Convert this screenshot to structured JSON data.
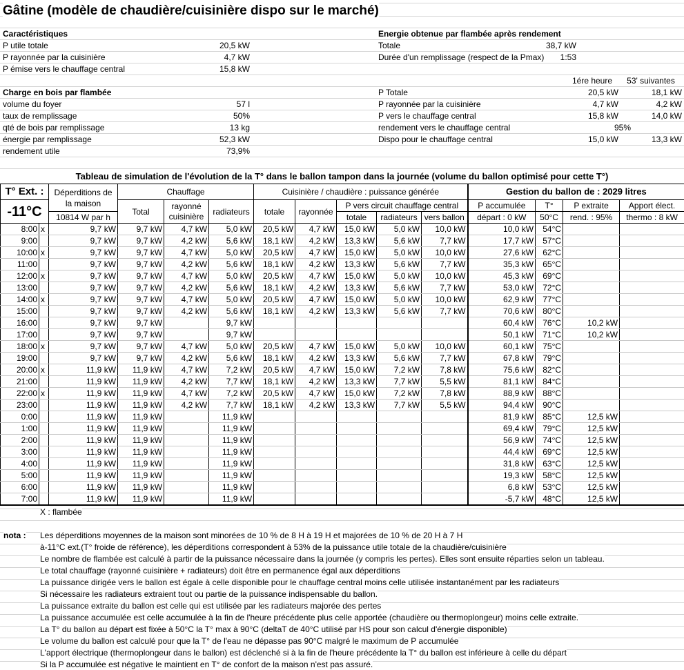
{
  "title": "Gâtine (modèle de chaudière/cuisinière dispo sur le marché)",
  "caracteristiques": {
    "heading": "Caractéristiques",
    "rows": [
      {
        "label": "P utile totale",
        "value": "20,5 kW"
      },
      {
        "label": "P rayonnée par la cuisinière",
        "value": "4,7 kW"
      },
      {
        "label": "P émise vers le chauffage central",
        "value": "15,8 kW"
      }
    ]
  },
  "charge": {
    "heading": "Charge en bois par flambée",
    "rows": [
      {
        "label": "volume du foyer",
        "value": "57 l"
      },
      {
        "label": "taux de remplissage",
        "value": "50%"
      },
      {
        "label": "qté de bois par remplissage",
        "value": "13 kg"
      },
      {
        "label": "énergie par remplissage",
        "value": "52,3 kW"
      },
      {
        "label": "rendement utile",
        "value": "73,9%"
      }
    ]
  },
  "energie": {
    "heading": "Energie obtenue par flambée après rendement",
    "totale_label": "Totale",
    "totale_value": "38,7 kW",
    "duree_label": "Durée d'un remplissage (respect de la Pmax)",
    "duree_value": "1:53",
    "col1": "1ére heure",
    "col2": "53' suivantes",
    "rows": [
      {
        "label": "P Totale",
        "v1": "20,5 kW",
        "v2": "18,1 kW"
      },
      {
        "label": "P rayonnée par la cuisinière",
        "v1": "4,7 kW",
        "v2": "4,2 kW"
      },
      {
        "label": "P vers le chauffage central",
        "v1": "15,8 kW",
        "v2": "14,0 kW"
      },
      {
        "label": "rendement vers le chauffage central",
        "v1": "95%",
        "v2": ""
      },
      {
        "label": "Dispo pour le chauffage central",
        "v1": "15,0 kW",
        "v2": "13,3 kW"
      }
    ]
  },
  "table": {
    "title": "Tableau de simulation de l'évolution de la T° dans le ballon tampon dans la journée (volume du ballon optimisé pour cette T°)",
    "h_text": "T° Ext. :",
    "h_temp": "-11°C",
    "h_dep": "Déperditions de la maison",
    "h_dep_val": "10814 W par h",
    "h_chauffage": "Chauffage",
    "h_total": "Total",
    "h_rayonne": "rayonné cuisinière",
    "h_radiateurs": "radiateurs",
    "h_cuisiniere": "Cuisinière / chaudière : puissance générée",
    "h_totale": "totale",
    "h_rayonnee": "rayonnée",
    "h_pvers": "P vers circuit chauffage central",
    "h_pv_totale": "totale",
    "h_pv_rad": "radiateurs",
    "h_pv_ballon": "vers ballon",
    "h_gestion": "Gestion du ballon de : 2029 litres",
    "h_pacc": "P accumulée",
    "h_t": "T°",
    "h_pext": "P extraite",
    "h_apport": "Apport élect.",
    "h_depart": "départ : 0 kW",
    "h_t0": "50°C",
    "h_rend": "rend. : 95%",
    "h_thermo": "thermo : 8 kW",
    "rows": [
      [
        "8:00",
        "x",
        "9,7 kW",
        "9,7 kW",
        "4,7 kW",
        "5,0 kW",
        "20,5 kW",
        "4,7 kW",
        "15,0 kW",
        "5,0 kW",
        "10,0 kW",
        "10,0 kW",
        "54°C",
        "",
        ""
      ],
      [
        "9:00",
        "",
        "9,7 kW",
        "9,7 kW",
        "4,2 kW",
        "5,6 kW",
        "18,1 kW",
        "4,2 kW",
        "13,3 kW",
        "5,6 kW",
        "7,7 kW",
        "17,7 kW",
        "57°C",
        "",
        ""
      ],
      [
        "10:00",
        "x",
        "9,7 kW",
        "9,7 kW",
        "4,7 kW",
        "5,0 kW",
        "20,5 kW",
        "4,7 kW",
        "15,0 kW",
        "5,0 kW",
        "10,0 kW",
        "27,6 kW",
        "62°C",
        "",
        ""
      ],
      [
        "11:00",
        "",
        "9,7 kW",
        "9,7 kW",
        "4,2 kW",
        "5,6 kW",
        "18,1 kW",
        "4,2 kW",
        "13,3 kW",
        "5,6 kW",
        "7,7 kW",
        "35,3 kW",
        "65°C",
        "",
        ""
      ],
      [
        "12:00",
        "x",
        "9,7 kW",
        "9,7 kW",
        "4,7 kW",
        "5,0 kW",
        "20,5 kW",
        "4,7 kW",
        "15,0 kW",
        "5,0 kW",
        "10,0 kW",
        "45,3 kW",
        "69°C",
        "",
        ""
      ],
      [
        "13:00",
        "",
        "9,7 kW",
        "9,7 kW",
        "4,2 kW",
        "5,6 kW",
        "18,1 kW",
        "4,2 kW",
        "13,3 kW",
        "5,6 kW",
        "7,7 kW",
        "53,0 kW",
        "72°C",
        "",
        ""
      ],
      [
        "14:00",
        "x",
        "9,7 kW",
        "9,7 kW",
        "4,7 kW",
        "5,0 kW",
        "20,5 kW",
        "4,7 kW",
        "15,0 kW",
        "5,0 kW",
        "10,0 kW",
        "62,9 kW",
        "77°C",
        "",
        ""
      ],
      [
        "15:00",
        "",
        "9,7 kW",
        "9,7 kW",
        "4,2 kW",
        "5,6 kW",
        "18,1 kW",
        "4,2 kW",
        "13,3 kW",
        "5,6 kW",
        "7,7 kW",
        "70,6 kW",
        "80°C",
        "",
        ""
      ],
      [
        "16:00",
        "",
        "9,7 kW",
        "9,7 kW",
        "",
        "9,7 kW",
        "",
        "",
        "",
        "",
        "",
        "60,4 kW",
        "76°C",
        "10,2 kW",
        ""
      ],
      [
        "17:00",
        "",
        "9,7 kW",
        "9,7 kW",
        "",
        "9,7 kW",
        "",
        "",
        "",
        "",
        "",
        "50,1 kW",
        "71°C",
        "10,2 kW",
        ""
      ],
      [
        "18:00",
        "x",
        "9,7 kW",
        "9,7 kW",
        "4,7 kW",
        "5,0 kW",
        "20,5 kW",
        "4,7 kW",
        "15,0 kW",
        "5,0 kW",
        "10,0 kW",
        "60,1 kW",
        "75°C",
        "",
        ""
      ],
      [
        "19:00",
        "",
        "9,7 kW",
        "9,7 kW",
        "4,2 kW",
        "5,6 kW",
        "18,1 kW",
        "4,2 kW",
        "13,3 kW",
        "5,6 kW",
        "7,7 kW",
        "67,8 kW",
        "79°C",
        "",
        ""
      ],
      [
        "20:00",
        "x",
        "11,9 kW",
        "11,9 kW",
        "4,7 kW",
        "7,2 kW",
        "20,5 kW",
        "4,7 kW",
        "15,0 kW",
        "7,2 kW",
        "7,8 kW",
        "75,6 kW",
        "82°C",
        "",
        ""
      ],
      [
        "21:00",
        "",
        "11,9 kW",
        "11,9 kW",
        "4,2 kW",
        "7,7 kW",
        "18,1 kW",
        "4,2 kW",
        "13,3 kW",
        "7,7 kW",
        "5,5 kW",
        "81,1 kW",
        "84°C",
        "",
        ""
      ],
      [
        "22:00",
        "x",
        "11,9 kW",
        "11,9 kW",
        "4,7 kW",
        "7,2 kW",
        "20,5 kW",
        "4,7 kW",
        "15,0 kW",
        "7,2 kW",
        "7,8 kW",
        "88,9 kW",
        "88°C",
        "",
        ""
      ],
      [
        "23:00",
        "",
        "11,9 kW",
        "11,9 kW",
        "4,2 kW",
        "7,7 kW",
        "18,1 kW",
        "4,2 kW",
        "13,3 kW",
        "7,7 kW",
        "5,5 kW",
        "94,4 kW",
        "90°C",
        "",
        ""
      ],
      [
        "0:00",
        "",
        "11,9 kW",
        "11,9 kW",
        "",
        "11,9 kW",
        "",
        "",
        "",
        "",
        "",
        "81,9 kW",
        "85°C",
        "12,5 kW",
        ""
      ],
      [
        "1:00",
        "",
        "11,9 kW",
        "11,9 kW",
        "",
        "11,9 kW",
        "",
        "",
        "",
        "",
        "",
        "69,4 kW",
        "79°C",
        "12,5 kW",
        ""
      ],
      [
        "2:00",
        "",
        "11,9 kW",
        "11,9 kW",
        "",
        "11,9 kW",
        "",
        "",
        "",
        "",
        "",
        "56,9 kW",
        "74°C",
        "12,5 kW",
        ""
      ],
      [
        "3:00",
        "",
        "11,9 kW",
        "11,9 kW",
        "",
        "11,9 kW",
        "",
        "",
        "",
        "",
        "",
        "44,4 kW",
        "69°C",
        "12,5 kW",
        ""
      ],
      [
        "4:00",
        "",
        "11,9 kW",
        "11,9 kW",
        "",
        "11,9 kW",
        "",
        "",
        "",
        "",
        "",
        "31,8 kW",
        "63°C",
        "12,5 kW",
        ""
      ],
      [
        "5:00",
        "",
        "11,9 kW",
        "11,9 kW",
        "",
        "11,9 kW",
        "",
        "",
        "",
        "",
        "",
        "19,3 kW",
        "58°C",
        "12,5 kW",
        ""
      ],
      [
        "6:00",
        "",
        "11,9 kW",
        "11,9 kW",
        "",
        "11,9 kW",
        "",
        "",
        "",
        "",
        "",
        "6,8 kW",
        "53°C",
        "12,5 kW",
        ""
      ],
      [
        "7:00",
        "",
        "11,9 kW",
        "11,9 kW",
        "",
        "11,9 kW",
        "",
        "",
        "",
        "",
        "",
        "-5,7 kW",
        "48°C",
        "12,5 kW",
        ""
      ]
    ]
  },
  "legend": "X : flambée",
  "notes": {
    "label": "nota :",
    "lines": [
      "Les déperditions moyennes de la maison sont minorées de 10 % de 8 H à 19 H et majorées de 10 % de 20 H à 7 H",
      "à-11°C ext.(T° froide de référence), les déperditions correspondent à 53% de la puissance utile totale de la chaudière/cuisinière",
      "Le nombre de flambée est calculé à partir de la puissance nécessaire dans la journée (y compris les pertes). Elles sont ensuite réparties selon un tableau.",
      "Le total chauffage (rayonné cuisinière + radiateurs) doit être en permanence égal aux déperditions",
      "La puissance dirigée vers le ballon est égale à celle disponible pour le chauffage central moins celle utilisée instantanément par les radiateurs",
      "Si nécessaire les radiateurs extraient tout ou partie de la puissance indispensable du ballon.",
      "La puissance extraite du ballon est celle qui est utilisée par les radiateurs majorée des pertes",
      "La puissance accumulée est celle accumulée à la fin de l'heure précédente plus celle apportée (chaudière ou thermoplongeur) moins celle extraite.",
      "La T° du ballon au départ est fixée à 50°C la T° max à 90°C (deltaT de 40°C utilisé par HS pour son calcul d'énergie disponible)",
      "Le volume du ballon est calculé pour que la T° de l'eau ne dépasse pas 90°C malgré le maximum de P accumulée",
      "L'apport électrique (thermoplongeur dans le ballon) est déclenché si à la fin de l'heure précédente  la T° du ballon est inférieure à celle du départ",
      "Si la P accumulée est négative le maintient en T° de confort de la maison n'est pas assuré."
    ]
  }
}
